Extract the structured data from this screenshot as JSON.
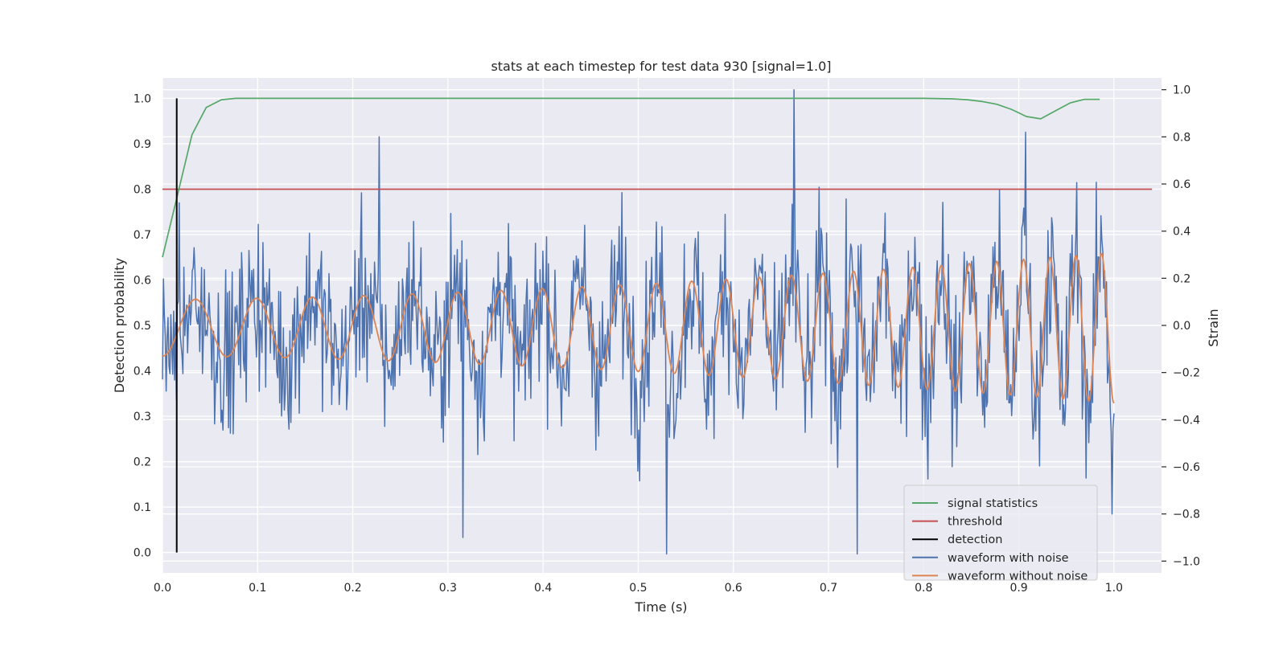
{
  "chart_data": {
    "type": "line",
    "title": "stats at each timestep for test data 930 [signal=1.0]",
    "xlabel": "Time (s)",
    "ylabel": "Detection probability",
    "y2label": "Strain",
    "xlim": [
      0.0,
      1.05
    ],
    "ylim": [
      -0.045,
      1.045
    ],
    "y2lim": [
      -1.05,
      1.05
    ],
    "grid": true,
    "legend_position": "lower right",
    "xticks": [
      "0.0",
      "0.1",
      "0.2",
      "0.3",
      "0.4",
      "0.5",
      "0.6",
      "0.7",
      "0.8",
      "0.9",
      "1.0"
    ],
    "yticks": [
      "0.0",
      "0.1",
      "0.2",
      "0.3",
      "0.4",
      "0.5",
      "0.6",
      "0.7",
      "0.8",
      "0.9",
      "1.0"
    ],
    "y2ticks": [
      "−1.0",
      "−0.8",
      "−0.6",
      "−0.4",
      "−0.2",
      "0.0",
      "0.2",
      "0.4",
      "0.6",
      "0.8",
      "1.0"
    ],
    "colors": {
      "signal_statistics": "#55a868",
      "threshold": "#c44e52",
      "detection": "#000000",
      "waveform_with_noise": "#4c72b0",
      "waveform_without_noise": "#dd8452",
      "plot_background": "#eaeaf2",
      "grid": "#ffffff"
    },
    "series": [
      {
        "name": "signal statistics",
        "axis": "left",
        "x": [
          0.0,
          0.015,
          0.031,
          0.046,
          0.062,
          0.077,
          0.092,
          0.2,
          0.4,
          0.6,
          0.8,
          0.83,
          0.846,
          0.862,
          0.877,
          0.892,
          0.908,
          0.923,
          0.938,
          0.954,
          0.969,
          0.985
        ],
        "values": [
          0.65,
          0.78,
          0.92,
          0.98,
          0.997,
          1.0,
          1.0,
          1.0,
          1.0,
          1.0,
          1.0,
          0.999,
          0.997,
          0.993,
          0.987,
          0.976,
          0.96,
          0.955,
          0.972,
          0.99,
          0.998,
          0.998
        ]
      },
      {
        "name": "threshold",
        "axis": "left",
        "x": [
          0.0,
          1.04
        ],
        "values": [
          0.8,
          0.8
        ]
      },
      {
        "name": "detection",
        "axis": "left",
        "x": [
          0.015,
          0.015
        ],
        "values": [
          0.0,
          1.0
        ]
      },
      {
        "name": "waveform with noise",
        "axis": "right",
        "x_start": 0.0,
        "x_end": 1.0,
        "n_points": 1024,
        "generator": "noisy",
        "amplitude_std": 0.27,
        "extremes": [
          {
            "x": 0.664,
            "value": 1.0
          },
          {
            "x": 0.53,
            "value": -0.97
          },
          {
            "x": 0.73,
            "value": -0.97
          },
          {
            "x": 0.907,
            "value": 0.82
          },
          {
            "x": 0.228,
            "value": 0.8
          },
          {
            "x": 0.316,
            "value": -0.9
          },
          {
            "x": 0.998,
            "value": -0.8
          }
        ]
      },
      {
        "name": "waveform without noise",
        "axis": "right",
        "x_start": 0.0,
        "x_end": 1.0,
        "n_points": 1024,
        "generator": "chirp",
        "amplitude_start": 0.12,
        "amplitude_end": 0.32,
        "offset": -0.01,
        "frequency_start_hz": 14.0,
        "frequency_end_hz": 38.0
      }
    ],
    "legend": [
      "signal statistics",
      "threshold",
      "detection",
      "waveform with noise",
      "waveform without noise"
    ]
  }
}
